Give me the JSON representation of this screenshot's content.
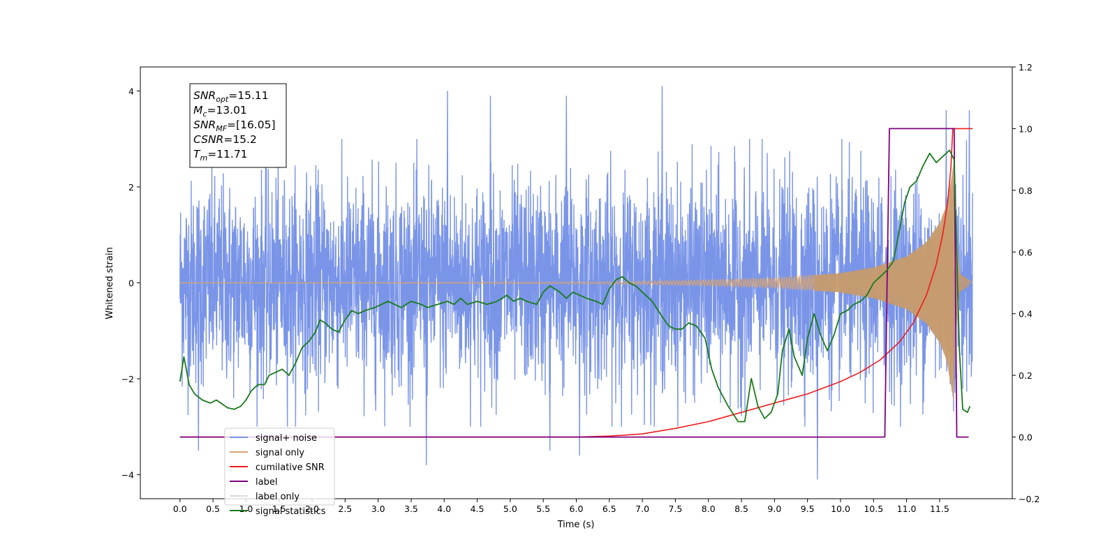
{
  "chart_data": {
    "type": "line",
    "xlabel": "Time (s)",
    "ylabel_left": "Whitened strain",
    "ylabel_right": "",
    "xlim": [
      -0.6,
      12.6
    ],
    "ylim_left": [
      -4.5,
      4.5
    ],
    "ylim_right": [
      -0.2,
      1.2
    ],
    "x_ticks": [
      0.0,
      0.5,
      1.0,
      1.5,
      2.0,
      2.5,
      3.0,
      3.5,
      4.0,
      4.5,
      5.0,
      5.5,
      6.0,
      6.5,
      7.0,
      7.5,
      8.0,
      8.5,
      9.0,
      9.5,
      10.0,
      10.5,
      11.0,
      11.5
    ],
    "x_tick_labels": [
      "0.0",
      "0.5",
      "1.0",
      "1.5",
      "2.0",
      "2.5",
      "3.0",
      "3.5",
      "4.0",
      "4.5",
      "5.0",
      "5.5",
      "6.0",
      "6.5",
      "7.0",
      "7.5",
      "8.0",
      "8.5",
      "9.0",
      "9.5",
      "10.0",
      "10.5",
      "11.0",
      "11.5"
    ],
    "y_ticks_left": [
      -4,
      -2,
      0,
      2,
      4
    ],
    "y_tick_labels_left": [
      "−4",
      "−2",
      "0",
      "2",
      "4"
    ],
    "y_ticks_right": [
      -0.2,
      0.0,
      0.2,
      0.4,
      0.6,
      0.8,
      1.0,
      1.2
    ],
    "y_tick_labels_right": [
      "−0.2",
      "0.0",
      "0.2",
      "0.4",
      "0.6",
      "0.8",
      "1.0",
      "1.2"
    ],
    "grid": false,
    "legend_position": "lower-left",
    "annotation_box": {
      "position": "top-left",
      "lines": [
        {
          "base": "SNR",
          "sub": "opt",
          "value": "=15.11"
        },
        {
          "base": "M",
          "sub": "c",
          "value": "=13.01"
        },
        {
          "base": "SNR",
          "sub": "MF",
          "value": "=[16.05]"
        },
        {
          "base": "CSNR",
          "sub": "",
          "value": "=15.2"
        },
        {
          "base": "T",
          "sub": "m",
          "value": "=11.71"
        }
      ]
    },
    "series": [
      {
        "name": "signal+ noise",
        "color": "#7a95e8",
        "axis": "left",
        "x_range": [
          0.0,
          12.0
        ],
        "description_values": "noise envelope approx ±2.5, peaks to ±4",
        "typical_amplitude": 2.4,
        "max_peaks": [
          [
            0.28,
            -3.5
          ],
          [
            3.73,
            -3.8
          ],
          [
            4.05,
            4.0
          ],
          [
            4.7,
            3.9
          ],
          [
            5.6,
            -3.5
          ],
          [
            5.85,
            3.9
          ],
          [
            6.05,
            -3.6
          ],
          [
            7.3,
            4.1
          ],
          [
            9.65,
            -4.1
          ],
          [
            11.6,
            3.6
          ],
          [
            11.95,
            3.6
          ]
        ]
      },
      {
        "name": "signal only",
        "color": "#d6a373",
        "axis": "left",
        "x_range": [
          0.0,
          12.0
        ],
        "envelope_points": [
          [
            0.0,
            0.0
          ],
          [
            6.5,
            0.02
          ],
          [
            8.0,
            0.06
          ],
          [
            9.0,
            0.1
          ],
          [
            10.0,
            0.2
          ],
          [
            10.5,
            0.32
          ],
          [
            11.0,
            0.55
          ],
          [
            11.3,
            0.85
          ],
          [
            11.5,
            1.25
          ],
          [
            11.6,
            1.6
          ],
          [
            11.68,
            2.2
          ],
          [
            11.71,
            2.5
          ],
          [
            11.74,
            1.2
          ],
          [
            11.8,
            0.2
          ],
          [
            12.0,
            0.0
          ]
        ]
      },
      {
        "name": "cumilative SNR",
        "color": "#ee1c1c",
        "axis": "right",
        "points": [
          [
            0.0,
            0.0
          ],
          [
            6.0,
            0.0
          ],
          [
            6.5,
            0.003
          ],
          [
            7.0,
            0.01
          ],
          [
            7.5,
            0.028
          ],
          [
            8.0,
            0.05
          ],
          [
            8.5,
            0.08
          ],
          [
            9.0,
            0.11
          ],
          [
            9.5,
            0.14
          ],
          [
            10.0,
            0.18
          ],
          [
            10.3,
            0.21
          ],
          [
            10.6,
            0.25
          ],
          [
            10.9,
            0.31
          ],
          [
            11.1,
            0.37
          ],
          [
            11.3,
            0.46
          ],
          [
            11.45,
            0.56
          ],
          [
            11.55,
            0.66
          ],
          [
            11.62,
            0.76
          ],
          [
            11.67,
            0.87
          ],
          [
            11.7,
            1.0
          ],
          [
            11.71,
            1.0
          ],
          [
            11.8,
            1.0
          ],
          [
            12.0,
            1.0
          ]
        ]
      },
      {
        "name": "label",
        "color": "#800080",
        "axis": "right",
        "points": [
          [
            0.0,
            0.0
          ],
          [
            10.67,
            0.0
          ],
          [
            10.74,
            1.0
          ],
          [
            11.72,
            1.0
          ],
          [
            11.76,
            0.0
          ],
          [
            11.94,
            0.0
          ]
        ]
      },
      {
        "name": "label only",
        "color": "#d9d9d9",
        "axis": "right",
        "hidden_behind_legend": true,
        "points": []
      },
      {
        "name": "signal statistics",
        "color": "#1a7a1a",
        "axis": "right",
        "points": [
          [
            0.0,
            0.18
          ],
          [
            0.06,
            0.26
          ],
          [
            0.14,
            0.17
          ],
          [
            0.22,
            0.14
          ],
          [
            0.34,
            0.12
          ],
          [
            0.46,
            0.11
          ],
          [
            0.55,
            0.12
          ],
          [
            0.62,
            0.11
          ],
          [
            0.72,
            0.095
          ],
          [
            0.82,
            0.09
          ],
          [
            0.92,
            0.1
          ],
          [
            1.0,
            0.12
          ],
          [
            1.08,
            0.15
          ],
          [
            1.18,
            0.17
          ],
          [
            1.28,
            0.17
          ],
          [
            1.35,
            0.2
          ],
          [
            1.45,
            0.21
          ],
          [
            1.55,
            0.22
          ],
          [
            1.65,
            0.2
          ],
          [
            1.75,
            0.24
          ],
          [
            1.85,
            0.29
          ],
          [
            1.95,
            0.31
          ],
          [
            2.05,
            0.34
          ],
          [
            2.12,
            0.38
          ],
          [
            2.2,
            0.37
          ],
          [
            2.3,
            0.35
          ],
          [
            2.4,
            0.34
          ],
          [
            2.5,
            0.38
          ],
          [
            2.6,
            0.41
          ],
          [
            2.7,
            0.4
          ],
          [
            2.8,
            0.41
          ],
          [
            2.95,
            0.42
          ],
          [
            3.05,
            0.43
          ],
          [
            3.15,
            0.44
          ],
          [
            3.25,
            0.43
          ],
          [
            3.35,
            0.42
          ],
          [
            3.5,
            0.44
          ],
          [
            3.65,
            0.43
          ],
          [
            3.75,
            0.42
          ],
          [
            3.9,
            0.43
          ],
          [
            4.05,
            0.44
          ],
          [
            4.15,
            0.43
          ],
          [
            4.25,
            0.45
          ],
          [
            4.35,
            0.43
          ],
          [
            4.5,
            0.44
          ],
          [
            4.65,
            0.43
          ],
          [
            4.8,
            0.44
          ],
          [
            4.95,
            0.46
          ],
          [
            5.05,
            0.44
          ],
          [
            5.15,
            0.45
          ],
          [
            5.25,
            0.44
          ],
          [
            5.4,
            0.43
          ],
          [
            5.5,
            0.47
          ],
          [
            5.6,
            0.49
          ],
          [
            5.75,
            0.47
          ],
          [
            5.85,
            0.45
          ],
          [
            5.95,
            0.47
          ],
          [
            6.05,
            0.46
          ],
          [
            6.15,
            0.45
          ],
          [
            6.3,
            0.44
          ],
          [
            6.4,
            0.43
          ],
          [
            6.5,
            0.48
          ],
          [
            6.6,
            0.51
          ],
          [
            6.7,
            0.52
          ],
          [
            6.8,
            0.5
          ],
          [
            6.9,
            0.49
          ],
          [
            7.0,
            0.47
          ],
          [
            7.15,
            0.44
          ],
          [
            7.3,
            0.39
          ],
          [
            7.4,
            0.36
          ],
          [
            7.5,
            0.35
          ],
          [
            7.6,
            0.35
          ],
          [
            7.7,
            0.37
          ],
          [
            7.82,
            0.36
          ],
          [
            7.95,
            0.32
          ],
          [
            8.05,
            0.22
          ],
          [
            8.15,
            0.16
          ],
          [
            8.3,
            0.1
          ],
          [
            8.45,
            0.05
          ],
          [
            8.55,
            0.05
          ],
          [
            8.65,
            0.19
          ],
          [
            8.75,
            0.1
          ],
          [
            8.85,
            0.06
          ],
          [
            8.95,
            0.08
          ],
          [
            9.05,
            0.14
          ],
          [
            9.12,
            0.28
          ],
          [
            9.22,
            0.35
          ],
          [
            9.3,
            0.26
          ],
          [
            9.42,
            0.2
          ],
          [
            9.5,
            0.32
          ],
          [
            9.6,
            0.4
          ],
          [
            9.7,
            0.33
          ],
          [
            9.8,
            0.28
          ],
          [
            9.9,
            0.33
          ],
          [
            10.0,
            0.4
          ],
          [
            10.1,
            0.41
          ],
          [
            10.2,
            0.43
          ],
          [
            10.3,
            0.44
          ],
          [
            10.4,
            0.46
          ],
          [
            10.5,
            0.5
          ],
          [
            10.6,
            0.52
          ],
          [
            10.7,
            0.54
          ],
          [
            10.8,
            0.57
          ],
          [
            10.9,
            0.68
          ],
          [
            10.97,
            0.76
          ],
          [
            11.05,
            0.81
          ],
          [
            11.15,
            0.83
          ],
          [
            11.25,
            0.88
          ],
          [
            11.35,
            0.92
          ],
          [
            11.45,
            0.89
          ],
          [
            11.55,
            0.91
          ],
          [
            11.65,
            0.93
          ],
          [
            11.72,
            0.9
          ],
          [
            11.8,
            0.28
          ],
          [
            11.85,
            0.09
          ],
          [
            11.92,
            0.08
          ],
          [
            11.96,
            0.1
          ]
        ]
      }
    ]
  }
}
